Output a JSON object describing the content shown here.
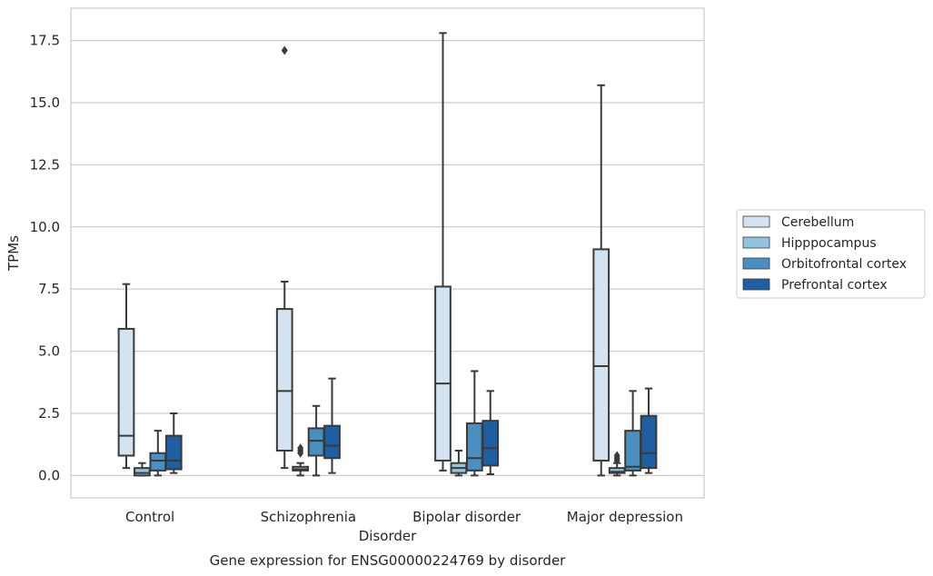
{
  "chart_data": {
    "type": "box",
    "title": "Gene expression for ENSG00000224769 by disorder",
    "xlabel": "Disorder",
    "ylabel": "TPMs",
    "ylim": [
      -0.9,
      18.8
    ],
    "yticks": [
      0.0,
      2.5,
      5.0,
      7.5,
      10.0,
      12.5,
      15.0,
      17.5
    ],
    "ytick_labels": [
      "0.0",
      "2.5",
      "5.0",
      "7.5",
      "10.0",
      "12.5",
      "15.0",
      "17.5"
    ],
    "grid": true,
    "legend_position": "right",
    "categories": [
      "Control",
      "Schizophrenia",
      "Bipolar disorder",
      "Major depression"
    ],
    "series": [
      {
        "name": "Cerebellum",
        "color": "#d4e3f1",
        "boxes": [
          {
            "whislo": 0.3,
            "q1": 0.8,
            "med": 1.6,
            "q3": 5.9,
            "whishi": 7.7,
            "fliers": []
          },
          {
            "whislo": 0.3,
            "q1": 1.0,
            "med": 3.4,
            "q3": 6.7,
            "whishi": 7.8,
            "fliers": [
              17.1
            ]
          },
          {
            "whislo": 0.2,
            "q1": 0.6,
            "med": 3.7,
            "q3": 7.6,
            "whishi": 17.8,
            "fliers": []
          },
          {
            "whislo": 0.0,
            "q1": 0.6,
            "med": 4.4,
            "q3": 9.1,
            "whishi": 15.7,
            "fliers": []
          }
        ]
      },
      {
        "name": "Hipppocampus",
        "color": "#93c4de",
        "boxes": [
          {
            "whislo": 0.0,
            "q1": 0.0,
            "med": 0.1,
            "q3": 0.3,
            "whishi": 0.5,
            "fliers": []
          },
          {
            "whislo": 0.0,
            "q1": 0.2,
            "med": 0.25,
            "q3": 0.35,
            "whishi": 0.5,
            "fliers": [
              0.9,
              1.0,
              1.1
            ]
          },
          {
            "whislo": 0.0,
            "q1": 0.1,
            "med": 0.3,
            "q3": 0.5,
            "whishi": 1.0,
            "fliers": []
          },
          {
            "whislo": 0.0,
            "q1": 0.1,
            "med": 0.15,
            "q3": 0.3,
            "whishi": 0.5,
            "fliers": [
              0.6,
              0.7,
              0.8
            ]
          }
        ]
      },
      {
        "name": "Orbitofrontal cortex",
        "color": "#4a8fc1",
        "boxes": [
          {
            "whislo": 0.0,
            "q1": 0.2,
            "med": 0.6,
            "q3": 0.9,
            "whishi": 1.8,
            "fliers": []
          },
          {
            "whislo": 0.0,
            "q1": 0.8,
            "med": 1.4,
            "q3": 1.9,
            "whishi": 2.8,
            "fliers": []
          },
          {
            "whislo": 0.0,
            "q1": 0.2,
            "med": 0.7,
            "q3": 2.1,
            "whishi": 4.2,
            "fliers": []
          },
          {
            "whislo": 0.0,
            "q1": 0.2,
            "med": 0.35,
            "q3": 1.8,
            "whishi": 3.4,
            "fliers": []
          }
        ]
      },
      {
        "name": "Prefrontal cortex",
        "color": "#1f5fa1",
        "boxes": [
          {
            "whislo": 0.1,
            "q1": 0.25,
            "med": 0.6,
            "q3": 1.6,
            "whishi": 2.5,
            "fliers": []
          },
          {
            "whislo": 0.1,
            "q1": 0.7,
            "med": 1.2,
            "q3": 2.0,
            "whishi": 3.9,
            "fliers": []
          },
          {
            "whislo": 0.05,
            "q1": 0.4,
            "med": 1.1,
            "q3": 2.2,
            "whishi": 3.4,
            "fliers": []
          },
          {
            "whislo": 0.1,
            "q1": 0.3,
            "med": 0.9,
            "q3": 2.4,
            "whishi": 3.5,
            "fliers": []
          }
        ]
      }
    ]
  }
}
